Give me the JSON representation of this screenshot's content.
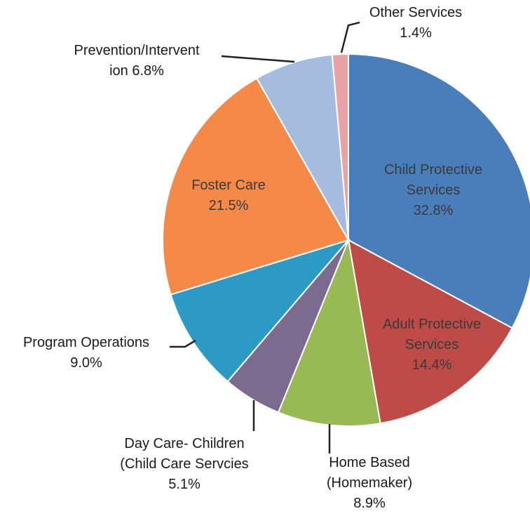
{
  "chart_data": {
    "type": "pie",
    "title": "",
    "slices": [
      {
        "lines": [
          "Child Protective",
          "Services"
        ],
        "value_label": "32.8%",
        "value": 32.8,
        "color": "#4a7ebb"
      },
      {
        "lines": [
          "Adult Protective",
          "Services"
        ],
        "value_label": "14.4%",
        "value": 14.4,
        "color": "#be4b48"
      },
      {
        "lines": [
          "Home Based",
          "(Homemaker)"
        ],
        "value_label": "8.9%",
        "value": 8.9,
        "color": "#98b954"
      },
      {
        "lines": [
          "Day Care- Children",
          "(Child Care Servcies"
        ],
        "value_label": "5.1%",
        "value": 5.1,
        "color": "#7d6a8f"
      },
      {
        "lines": [
          "Program Operations"
        ],
        "value_label": "9.0%",
        "value": 9.0,
        "color": "#2c9ac4"
      },
      {
        "lines": [
          "Foster Care"
        ],
        "value_label": "21.5%",
        "value": 21.5,
        "color": "#f58a48"
      },
      {
        "lines": [
          "Prevention/Intervent",
          "ion"
        ],
        "value_label": "6.8%",
        "value": 6.8,
        "color": "#a6bcdf"
      },
      {
        "lines": [
          "Other Services"
        ],
        "value_label": "1.4%",
        "value": 1.4,
        "color": "#e9a3a6"
      }
    ]
  }
}
